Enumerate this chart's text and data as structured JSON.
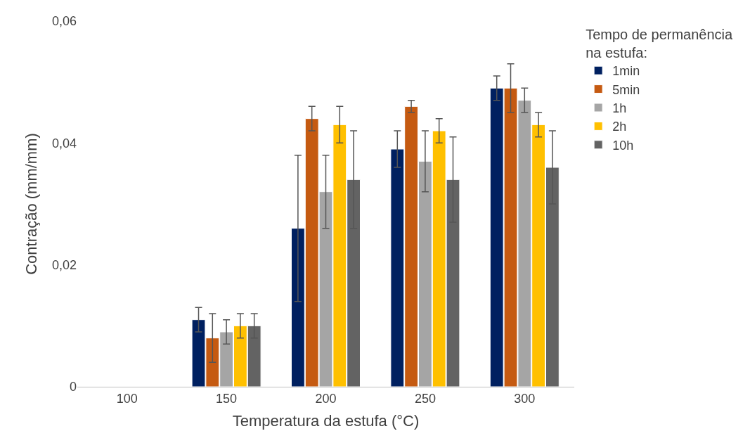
{
  "chart_data": {
    "type": "bar",
    "xlabel": "Temperatura da estufa (°C)",
    "ylabel": "Contração (mm/mm)",
    "legend_title": "Tempo de permanência\nna estufa:",
    "legend": "right",
    "categories": [
      "100",
      "150",
      "200",
      "250",
      "300"
    ],
    "ylim": [
      0,
      0.06
    ],
    "yticks": [
      {
        "value": 0,
        "label": "0"
      },
      {
        "value": 0.02,
        "label": "0,02"
      },
      {
        "value": 0.04,
        "label": "0,04"
      },
      {
        "value": 0.06,
        "label": "0,06"
      }
    ],
    "series": [
      {
        "name": "1min",
        "color": "#002060",
        "values": [
          null,
          0.011,
          0.026,
          0.039,
          0.049
        ],
        "errors": [
          null,
          0.002,
          0.012,
          0.003,
          0.002
        ]
      },
      {
        "name": "5min",
        "color": "#c55a11",
        "values": [
          null,
          0.008,
          0.044,
          0.046,
          0.049
        ],
        "errors": [
          null,
          0.004,
          0.002,
          0.001,
          0.004
        ]
      },
      {
        "name": "1h",
        "color": "#a5a5a5",
        "values": [
          null,
          0.009,
          0.032,
          0.037,
          0.047
        ],
        "errors": [
          null,
          0.002,
          0.006,
          0.005,
          0.002
        ]
      },
      {
        "name": "2h",
        "color": "#ffc000",
        "values": [
          null,
          0.01,
          0.043,
          0.042,
          0.043
        ],
        "errors": [
          null,
          0.002,
          0.003,
          0.002,
          0.002
        ]
      },
      {
        "name": "10h",
        "color": "#636363",
        "values": [
          null,
          0.01,
          0.034,
          0.034,
          0.036
        ],
        "errors": [
          null,
          0.002,
          0.008,
          0.007,
          0.006
        ]
      }
    ]
  }
}
